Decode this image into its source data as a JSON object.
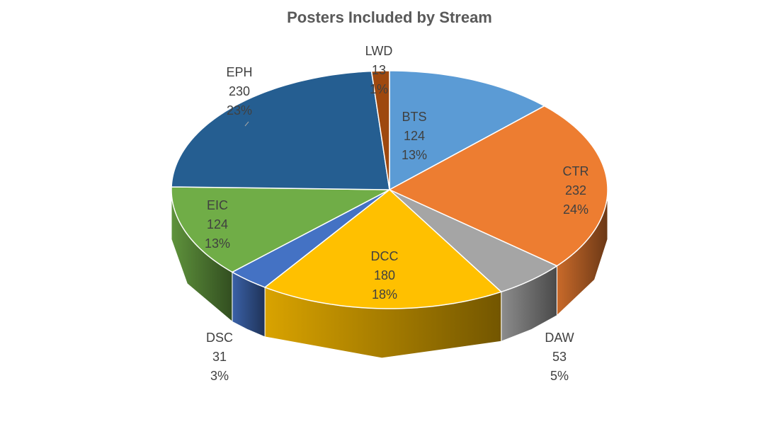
{
  "chart_data": {
    "type": "pie3d",
    "title": "Posters Included by Stream",
    "categories": [
      "BTS",
      "CTR",
      "DAW",
      "DCC",
      "DSC",
      "EIC",
      "EPH",
      "LWD"
    ],
    "values": [
      124,
      232,
      53,
      180,
      31,
      124,
      230,
      13
    ],
    "percent_labels": [
      "13%",
      "24%",
      "5%",
      "18%",
      "3%",
      "13%",
      "23%",
      "1%"
    ],
    "colors": [
      "#5b9bd5",
      "#ed7d31",
      "#a5a5a5",
      "#ffc000",
      "#4472c4",
      "#70ad47",
      "#255e91",
      "#9e480e"
    ]
  }
}
